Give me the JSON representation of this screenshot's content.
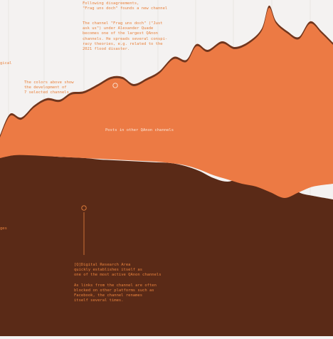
{
  "chart_data": {
    "type": "area",
    "center_label": "Posts in other QAnon channels",
    "annotations": [
      {
        "id": "a1",
        "lines": [
          "Following disagreements,",
          "\"Frag uns doch\" founds a new channel"
        ]
      },
      {
        "id": "a2",
        "lines": [
          "The channel \"Frag uns doch\" (\"Just",
          "ask us\") under Alexander Quade",
          "becomes one of the largest QAnon",
          "channels. He spreads several conspi-",
          "racy theories, e.g. related to the",
          "2021 flood disaster."
        ]
      },
      {
        "id": "a3",
        "lines": [
          "The colors above show",
          "the development of",
          "7 selected channels"
        ]
      },
      {
        "id": "a4",
        "lines": [
          "[Q]Digital Research Area",
          "quickly establishes itself as",
          "one of the most active QAnon channels",
          "",
          "As links from the channel are often",
          "blocked on other platforms such as",
          "Facebook, the channel renames",
          "itself several times."
        ]
      },
      {
        "id": "a5",
        "lines": [
          "gical"
        ]
      },
      {
        "id": "a6",
        "lines": [
          "ges"
        ]
      }
    ],
    "colors": {
      "background": "#f4f2f1",
      "main_stream": "#ec7a44",
      "dark_brown": "#5a2a17",
      "mid_brown": "#8a4a2c",
      "tan": "#c9906d",
      "light_peach": "#e9c3ad",
      "pale": "#f3ddd0",
      "annotation": "#e8823d"
    }
  }
}
